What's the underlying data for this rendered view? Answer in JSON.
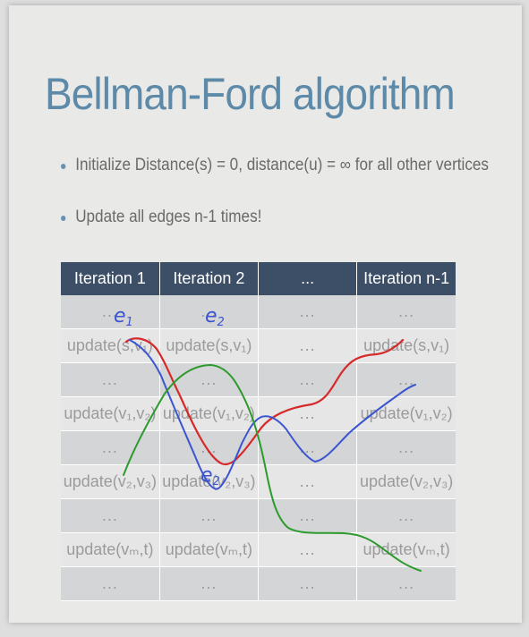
{
  "title": "Bellman-Ford algorithm",
  "bullets": [
    "Initialize Distance(s) = 0, distance(u) = ∞ for all other vertices",
    "Update all edges n-1 times!"
  ],
  "table": {
    "headers": [
      "Iteration 1",
      "Iteration 2",
      "...",
      "Iteration n-1"
    ],
    "rows": [
      [
        "...",
        "...",
        "...",
        "..."
      ],
      [
        "update(s,v₁)",
        "update(s,v₁)",
        "...",
        "update(s,v₁)"
      ],
      [
        "...",
        "...",
        "...",
        "..."
      ],
      [
        "update(v₁,v₂)",
        "update(v₁,v₂)",
        "...",
        "update(v₁,v₂)"
      ],
      [
        "...",
        "...",
        "...",
        "..."
      ],
      [
        "update(v₂,v₃)",
        "update(v₂,v₃)",
        "...",
        "update(v₂,v₃)"
      ],
      [
        "...",
        "...",
        "...",
        "..."
      ],
      [
        "update(vₘ,t)",
        "update(vₘ,t)",
        "...",
        "update(vₘ,t)"
      ],
      [
        "...",
        "...",
        "...",
        "..."
      ]
    ]
  },
  "annotations": {
    "e1": "e",
    "e1_sub": "1",
    "e2": "e",
    "e2_sub": "2",
    "e3": "e",
    "e3_sub": "2"
  },
  "colors": {
    "title": "#5d8aa8",
    "header_bg": "#3d4f66",
    "ink_blue": "#3b55d1",
    "ink_red": "#d62a2a",
    "ink_green": "#2c9a2c"
  }
}
